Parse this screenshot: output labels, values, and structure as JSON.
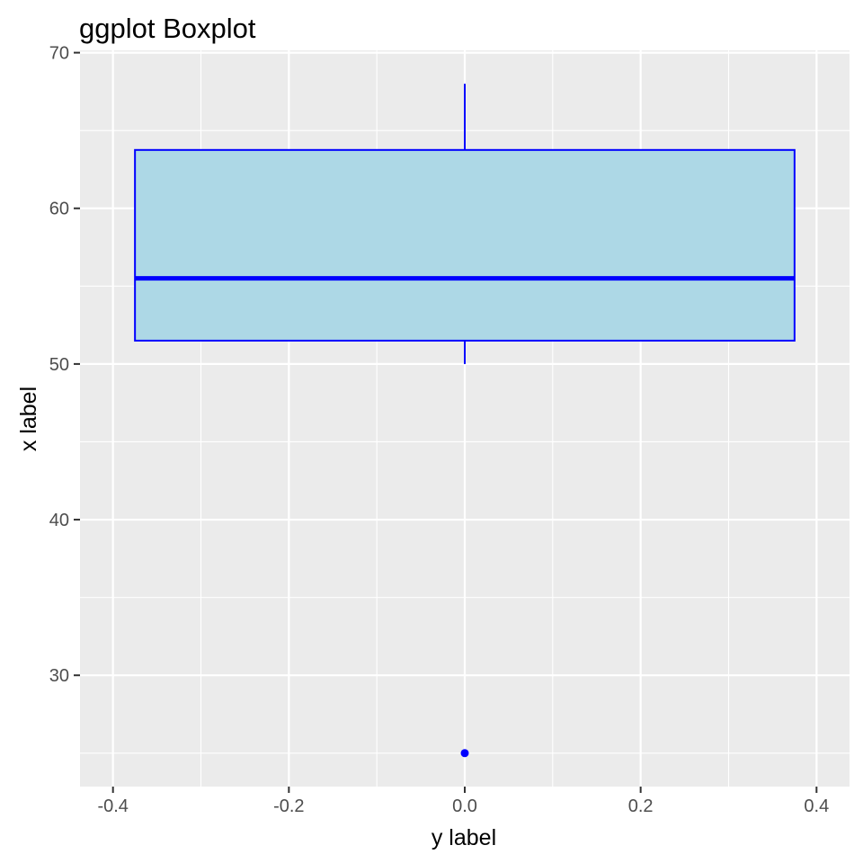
{
  "chart_data": {
    "type": "boxplot",
    "title": "ggplot Boxplot",
    "xlabel": "y label",
    "ylabel": "x label",
    "xlim": [
      -0.4375,
      0.4375
    ],
    "ylim": [
      22.85,
      70.15
    ],
    "x_ticks": [
      -0.4,
      -0.2,
      0.0,
      0.2,
      0.4
    ],
    "x_tick_labels": [
      "-0.4",
      "-0.2",
      "0.0",
      "0.2",
      "0.4"
    ],
    "y_ticks": [
      30,
      40,
      50,
      60,
      70
    ],
    "y_tick_labels": [
      "30",
      "40",
      "50",
      "60",
      "70"
    ],
    "grid": true,
    "box": {
      "x_center": 0.0,
      "x_left": -0.375,
      "x_right": 0.375,
      "whisker_low": 50,
      "q1": 51.5,
      "median": 55.5,
      "q3": 63.75,
      "whisker_high": 68,
      "outliers": [
        25
      ]
    },
    "colors": {
      "panel_background": "#EBEBEB",
      "grid": "#FFFFFF",
      "box_fill": "#ADD8E6",
      "box_outline": "#0000FF",
      "tick_text": "#4D4D4D",
      "tick_mark": "#333333"
    }
  }
}
